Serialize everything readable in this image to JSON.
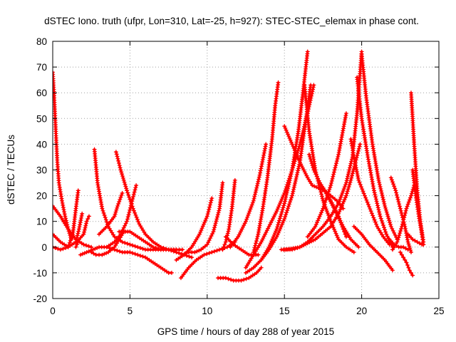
{
  "chart_data": {
    "type": "scatter",
    "title": "dSTEC Iono. truth (ufpr, Lon=310, Lat=-25, h=927): STEC-STEC_elemax in phase cont.",
    "xlabel": "GPS time / hours of day 288 of year 2015",
    "ylabel": "dSTEC  / TECUs",
    "xlim": [
      0,
      25
    ],
    "ylim": [
      -20,
      80
    ],
    "x_ticks": [
      "0",
      "5",
      "10",
      "15",
      "20",
      "25"
    ],
    "y_ticks": [
      "-20",
      "-10",
      "0",
      "10",
      "20",
      "30",
      "40",
      "50",
      "60",
      "70",
      "80"
    ],
    "grid": true,
    "marker": "+",
    "color": "#ff0000",
    "series": [
      {
        "x": [
          0.0,
          0.1,
          0.2,
          0.3,
          0.4,
          0.6,
          0.8,
          1.0,
          1.2
        ],
        "y": [
          68,
          58,
          45,
          33,
          25,
          18,
          12,
          7,
          3
        ]
      },
      {
        "x": [
          0.0,
          0.5,
          1.0,
          1.5,
          2.0,
          2.5
        ],
        "y": [
          16,
          12,
          7,
          3,
          1,
          0
        ]
      },
      {
        "x": [
          0.0,
          0.5,
          1.0,
          1.3,
          1.5,
          1.65
        ],
        "y": [
          5,
          2,
          0,
          5,
          15,
          22
        ]
      },
      {
        "x": [
          0.0,
          0.5,
          1.0,
          1.5,
          1.7,
          1.9
        ],
        "y": [
          0,
          -1,
          0,
          2,
          7,
          13
        ]
      },
      {
        "x": [
          1.5,
          1.7,
          2.0,
          2.2,
          2.35
        ],
        "y": [
          0,
          3,
          5,
          10,
          12
        ]
      },
      {
        "x": [
          1.8,
          2.2,
          2.6,
          3.0,
          3.5,
          4.0,
          4.5,
          5.0,
          5.5,
          6.0,
          6.5,
          7.0,
          7.5,
          7.7
        ],
        "y": [
          -3,
          -2,
          -1,
          0,
          0,
          -1,
          -2,
          -2,
          -3,
          -4,
          -6,
          -8,
          -10,
          -10
        ]
      },
      {
        "x": [
          2.7,
          2.9,
          3.2,
          3.6,
          4.0,
          4.5,
          5.0,
          5.5,
          6.0,
          6.5,
          7.0,
          7.5,
          8.0,
          8.4
        ],
        "y": [
          38,
          25,
          15,
          8,
          4,
          2,
          1,
          0,
          -1,
          -1,
          -1,
          -1,
          -1,
          -1
        ]
      },
      {
        "x": [
          2.5,
          2.8,
          3.2,
          3.6,
          4.0,
          4.3,
          4.6
        ],
        "y": [
          -2,
          -3,
          -3,
          -2,
          0,
          3,
          6
        ]
      },
      {
        "x": [
          4.1,
          4.4,
          4.8,
          5.2,
          5.6,
          6.0,
          6.5,
          7.0,
          7.5,
          8.0,
          8.5,
          9.0
        ],
        "y": [
          37,
          30,
          22,
          15,
          9,
          5,
          2,
          0,
          -1,
          -2,
          -3,
          -4
        ]
      },
      {
        "x": [
          3.5,
          4.0,
          4.4,
          4.8,
          5.1,
          5.4
        ],
        "y": [
          0,
          2,
          5,
          10,
          17,
          24
        ]
      },
      {
        "x": [
          3.0,
          3.5,
          4.0,
          4.2,
          4.5
        ],
        "y": [
          5,
          8,
          12,
          16,
          21
        ]
      },
      {
        "x": [
          4.3,
          5.0,
          5.5,
          6.0,
          6.5,
          7.0,
          7.5,
          8.0
        ],
        "y": [
          6,
          6,
          4,
          2,
          0,
          -1,
          -1,
          -1
        ]
      },
      {
        "x": [
          8.3,
          8.8,
          9.3,
          9.8,
          10.3,
          10.8,
          11.3,
          11.8
        ],
        "y": [
          -12,
          -8,
          -5,
          -3,
          -2,
          -1,
          0,
          2
        ]
      },
      {
        "x": [
          8.0,
          8.5,
          9.0,
          9.5,
          10.0,
          10.3
        ],
        "y": [
          -5,
          -3,
          0,
          5,
          12,
          19
        ]
      },
      {
        "x": [
          8.4,
          8.8,
          9.2,
          9.6,
          10.0,
          10.4,
          10.8,
          11.0
        ],
        "y": [
          -3,
          -2,
          -2,
          -1,
          1,
          6,
          15,
          25
        ]
      },
      {
        "x": [
          11.0,
          11.2,
          11.4,
          11.6,
          11.8
        ],
        "y": [
          -1,
          2,
          7,
          15,
          26
        ]
      },
      {
        "x": [
          10.7,
          11.2,
          11.7,
          12.2,
          12.7,
          13.2,
          13.5
        ],
        "y": [
          -12,
          -12,
          -13,
          -13,
          -12,
          -10,
          -8
        ]
      },
      {
        "x": [
          11.2,
          11.7,
          12.2,
          12.7,
          13.0,
          13.3
        ],
        "y": [
          4,
          1,
          -1,
          -3,
          -3,
          -3
        ]
      },
      {
        "x": [
          12.5,
          13.0,
          13.5,
          14.0,
          14.5,
          15.0,
          15.5,
          16.0,
          16.5,
          16.9
        ],
        "y": [
          -8,
          -3,
          2,
          8,
          14,
          21,
          30,
          40,
          52,
          63
        ]
      },
      {
        "x": [
          13.0,
          13.3,
          13.6,
          13.9,
          14.2,
          14.4,
          14.6
        ],
        "y": [
          -2,
          5,
          15,
          27,
          42,
          55,
          64
        ]
      },
      {
        "x": [
          11.5,
          12.0,
          12.5,
          13.0,
          13.4,
          13.8
        ],
        "y": [
          0,
          4,
          10,
          18,
          28,
          40
        ]
      },
      {
        "x": [
          12.5,
          13.0,
          13.5,
          14.0,
          14.5,
          15.0,
          15.5,
          16.0,
          16.4,
          16.7
        ],
        "y": [
          -10,
          -8,
          -5,
          -1,
          4,
          11,
          20,
          33,
          50,
          63
        ]
      },
      {
        "x": [
          13.5,
          14.0,
          14.5,
          15.0,
          15.5,
          15.9,
          16.2,
          16.5
        ],
        "y": [
          -5,
          0,
          7,
          17,
          30,
          45,
          60,
          76
        ]
      },
      {
        "x": [
          15.0,
          15.5,
          16.0,
          16.5,
          16.8,
          17.2,
          17.6,
          18.0,
          18.4,
          18.8
        ],
        "y": [
          47,
          40,
          33,
          27,
          24,
          23,
          22,
          20,
          18,
          15
        ]
      },
      {
        "x": [
          16.3,
          16.6,
          17.0,
          17.5,
          18.0,
          18.5,
          19.0,
          19.5
        ],
        "y": [
          63,
          45,
          30,
          18,
          10,
          3,
          0,
          -2
        ]
      },
      {
        "x": [
          16.6,
          16.9,
          17.3,
          17.8,
          18.3,
          18.8,
          19.3,
          19.8
        ],
        "y": [
          36,
          30,
          25,
          20,
          14,
          8,
          3,
          0
        ]
      },
      {
        "x": [
          15.0,
          16.0,
          17.0,
          18.0,
          18.5,
          19.0,
          19.3,
          19.6,
          19.9
        ],
        "y": [
          -1,
          0,
          3,
          8,
          13,
          20,
          26,
          33,
          40
        ]
      },
      {
        "x": [
          17.5,
          18.0,
          18.5,
          18.8,
          19.0
        ],
        "y": [
          23,
          18,
          12,
          7,
          4
        ]
      },
      {
        "x": [
          16.5,
          17.0,
          17.5,
          18.0,
          18.5,
          19.0
        ],
        "y": [
          4,
          8,
          15,
          24,
          36,
          52
        ]
      },
      {
        "x": [
          14.8,
          15.5,
          16.0,
          16.5,
          17.0,
          17.5,
          18.0,
          18.5,
          19.0,
          19.4,
          19.7,
          20.0
        ],
        "y": [
          -1,
          -1,
          0,
          2,
          5,
          8,
          12,
          17,
          25,
          35,
          52,
          76
        ]
      },
      {
        "x": [
          19.3,
          19.5,
          19.8,
          20.2,
          20.6,
          21.0,
          21.4,
          21.8
        ],
        "y": [
          42,
          35,
          26,
          20,
          14,
          8,
          4,
          1
        ]
      },
      {
        "x": [
          19.7,
          20.0,
          20.4,
          20.8,
          21.2,
          21.6,
          22.0
        ],
        "y": [
          66,
          50,
          35,
          22,
          12,
          5,
          0
        ]
      },
      {
        "x": [
          20.0,
          20.3,
          20.7,
          21.1,
          21.5,
          21.9,
          22.3
        ],
        "y": [
          75,
          58,
          40,
          26,
          16,
          8,
          3
        ]
      },
      {
        "x": [
          19.5,
          20.0,
          20.5,
          21.0,
          21.5,
          22.0
        ],
        "y": [
          8,
          5,
          1,
          -2,
          -5,
          -9
        ]
      },
      {
        "x": [
          21.9,
          22.2,
          22.5,
          22.8,
          23.0,
          23.2
        ],
        "y": [
          27,
          22,
          15,
          8,
          2,
          -2
        ]
      },
      {
        "x": [
          22.0,
          22.3,
          22.6,
          22.9,
          23.2,
          23.4
        ],
        "y": [
          -1,
          2,
          8,
          15,
          20,
          24
        ]
      },
      {
        "x": [
          22.5,
          22.7,
          22.9,
          23.1,
          23.3
        ],
        "y": [
          -2,
          -4,
          -6,
          -9,
          -11
        ]
      },
      {
        "x": [
          23.2,
          23.4,
          23.6,
          23.8,
          24.0
        ],
        "y": [
          60,
          40,
          22,
          10,
          2
        ]
      },
      {
        "x": [
          23.3,
          23.5,
          23.7,
          23.9,
          24.0
        ],
        "y": [
          30,
          20,
          12,
          5,
          1
        ]
      },
      {
        "x": [
          23.0,
          23.3,
          23.6,
          23.9,
          24.0
        ],
        "y": [
          5,
          3,
          2,
          1,
          1
        ]
      },
      {
        "x": [
          21.8,
          22.1,
          22.4,
          22.7,
          23.0
        ],
        "y": [
          3,
          1,
          0,
          0,
          -1
        ]
      }
    ]
  }
}
